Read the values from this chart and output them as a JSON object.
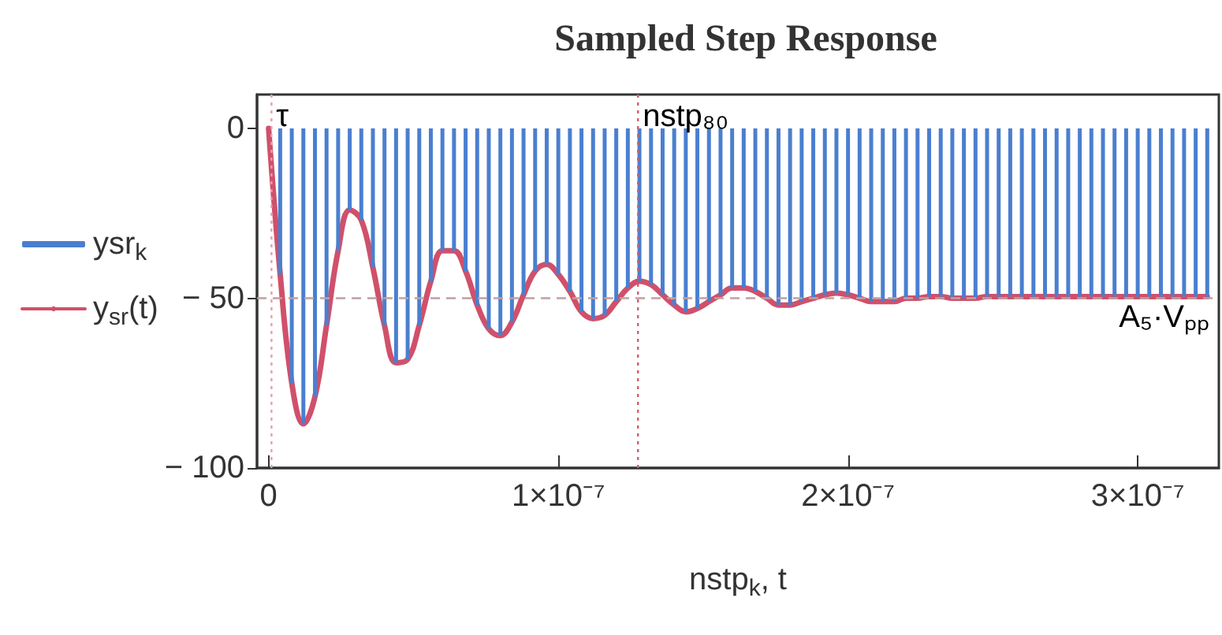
{
  "chart_data": {
    "type": "bar",
    "title": "Sampled Step Response",
    "xlabel": "nstp$_{k}$, t",
    "legend": "left",
    "xlim": [
      -4e-09,
      3.28e-07
    ],
    "xticks": [
      {
        "value": 0,
        "label": "0"
      },
      {
        "value": 1e-07,
        "label": "1×10⁻⁷"
      },
      {
        "value": 2e-07,
        "label": "2×10⁻⁷"
      },
      {
        "value": 3e-07,
        "label": "3×10⁻⁷"
      }
    ],
    "ylim": [
      -100,
      10
    ],
    "yticks": [
      {
        "value": -100,
        "label": "− 100"
      },
      {
        "value": -50,
        "label": "− 50"
      },
      {
        "value": 0,
        "label": "0"
      }
    ],
    "x": [
      0,
      4e-09,
      8e-09,
      1.2e-08,
      1.6e-08,
      2e-08,
      2.4e-08,
      2.8e-08,
      3.2e-08,
      3.6e-08,
      4e-08,
      4.4e-08,
      4.8e-08,
      5.2e-08,
      5.6e-08,
      6e-08,
      6.4e-08,
      6.8e-08,
      7.2e-08,
      7.6e-08,
      8e-08,
      8.4e-08,
      8.8e-08,
      9.2e-08,
      9.6e-08,
      1e-07,
      1.04e-07,
      1.08e-07,
      1.12e-07,
      1.16e-07,
      1.2e-07,
      1.24e-07,
      1.28e-07,
      1.32e-07,
      1.36e-07,
      1.4e-07,
      1.44e-07,
      1.48e-07,
      1.52e-07,
      1.56e-07,
      1.6e-07,
      1.64e-07,
      1.68e-07,
      1.72e-07,
      1.76e-07,
      1.8e-07,
      1.84e-07,
      1.88e-07,
      1.92e-07,
      1.96e-07,
      2e-07,
      2.04e-07,
      2.08e-07,
      2.12e-07,
      2.16e-07,
      2.2e-07,
      2.24e-07,
      2.28e-07,
      2.32e-07,
      2.36e-07,
      2.4e-07,
      2.44e-07,
      2.48e-07,
      2.52e-07,
      2.56e-07,
      2.6e-07,
      2.64e-07,
      2.68e-07,
      2.72e-07,
      2.76e-07,
      2.8e-07,
      2.84e-07,
      2.88e-07,
      2.92e-07,
      2.96e-07,
      3e-07,
      3.04e-07,
      3.08e-07,
      3.12e-07,
      3.16e-07,
      3.2e-07,
      3.24e-07
    ],
    "series": [
      {
        "name": "ysr$_{k}$",
        "color": "#4a7fd0",
        "values": [
          0,
          -43,
          -75,
          -87,
          -79,
          -58,
          -36,
          -24,
          -27,
          -41,
          -58,
          -69,
          -68,
          -58,
          -45,
          -36,
          -36,
          -42,
          -52,
          -59,
          -61,
          -57,
          -49,
          -42,
          -40,
          -43,
          -48,
          -54,
          -56,
          -55,
          -51,
          -47,
          -45,
          -46,
          -49,
          -52,
          -54,
          -53,
          -51,
          -49,
          -47,
          -47,
          -48,
          -50,
          -52,
          -52,
          -51,
          -50,
          -49,
          -48.5,
          -49,
          -50,
          -51,
          -51,
          -51,
          -50,
          -50,
          -49.5,
          -49.5,
          -50,
          -50,
          -50,
          -49.5,
          -49.5,
          -49.5,
          -49.5,
          -49.5,
          -49.5,
          -49.5,
          -49.5,
          -49.5,
          -49.5,
          -49.5,
          -49.5,
          -49.5,
          -49.5,
          -49.5,
          -49.5,
          -49.5,
          -49.5,
          -49.5,
          -49.5
        ]
      },
      {
        "name": "y$_{sr}$(t)",
        "type": "line",
        "color": "#d0506a",
        "marker": "none",
        "line_style": "solid",
        "values": [
          0,
          -43,
          -75,
          -87,
          -79,
          -58,
          -36,
          -24,
          -27,
          -41,
          -58,
          -69,
          -68,
          -58,
          -45,
          -36,
          -36,
          -42,
          -52,
          -59,
          -61,
          -57,
          -49,
          -42,
          -40,
          -43,
          -48,
          -54,
          -56,
          -55,
          -51,
          -47,
          -45,
          -46,
          -49,
          -52,
          -54,
          -53,
          -51,
          -49,
          -47,
          -47,
          -48,
          -50,
          -52,
          -52,
          -51,
          -50,
          -49,
          -48.5,
          -49,
          -50,
          -51,
          -51,
          -51,
          -50,
          -50,
          -49.5,
          -49.5,
          -50,
          -50,
          -50,
          -49.5,
          -49.5,
          -49.5,
          -49.5,
          -49.5,
          -49.5,
          -49.5,
          -49.5,
          -49.5,
          -49.5,
          -49.5,
          -49.5,
          -49.5,
          -49.5,
          -49.5,
          -49.5,
          -49.5,
          -49.5,
          -49.5,
          -49.5
        ]
      }
    ],
    "ref_lines": [
      {
        "axis": "x",
        "value": 1e-09,
        "label": "τ",
        "color": "#e8a0a8",
        "line_style": "dotted"
      },
      {
        "axis": "x",
        "value": 1.275e-07,
        "label": "nstp₈₀",
        "color": "#d06070",
        "line_style": "dotted"
      },
      {
        "axis": "y",
        "value": -50,
        "label": "A₅·Vₚₚ",
        "color": "#c0a0a0",
        "line_style": "dashed"
      }
    ]
  }
}
